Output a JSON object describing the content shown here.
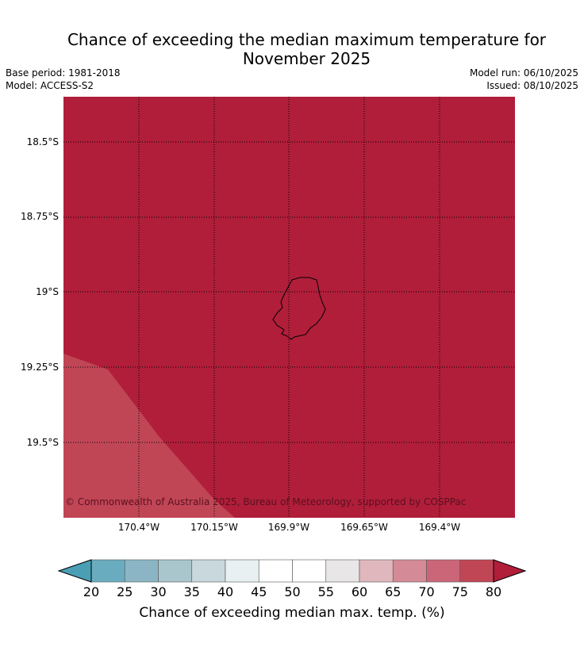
{
  "header": {
    "title_line1": "Chance of exceeding the median maximum temperature for",
    "title_line2": "November 2025",
    "base_period": "Base period: 1981-2018",
    "model": "Model: ACCESS-S2",
    "model_run": "Model run: 06/10/2025",
    "issued": "Issued: 08/10/2025"
  },
  "map": {
    "lat_labels": [
      "18.5°S",
      "18.75°S",
      "19°S",
      "19.25°S",
      "19.5°S"
    ],
    "lon_labels": [
      "170.4°W",
      "170.15°W",
      "169.9°W",
      "169.65°W",
      "169.4°W"
    ],
    "region_main_category": "80+",
    "region_corner_category": "75-80",
    "copyright": "© Commonwealth of Australia 2025, Bureau of Meteorology, supported by COSPPac"
  },
  "colorbar": {
    "tick_labels": [
      "20",
      "25",
      "30",
      "35",
      "40",
      "45",
      "50",
      "55",
      "60",
      "65",
      "70",
      "75",
      "80"
    ],
    "colors": [
      "#4a9fb5",
      "#6aacbf",
      "#8bb5c4",
      "#a8c6cb",
      "#c8d8dc",
      "#e9f0f2",
      "#ffffff",
      "#ffffff",
      "#e8e6e6",
      "#e0b7bc",
      "#d48b97",
      "#cb6678",
      "#c04656",
      "#b01e3a"
    ],
    "label": "Chance of exceeding median max. temp. (%)"
  }
}
